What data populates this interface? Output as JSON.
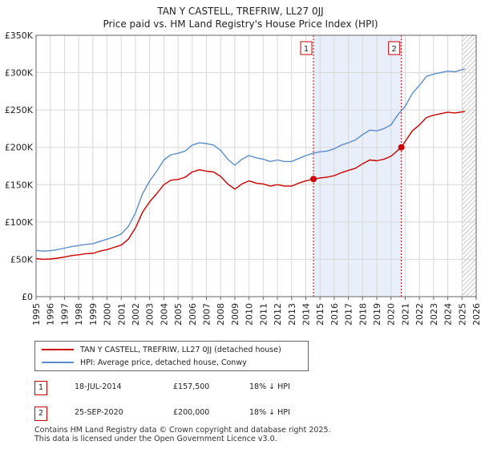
{
  "title_line1": "TAN Y CASTELL, TREFRIW, LL27 0JJ",
  "title_line2": "Price paid vs. HM Land Registry's House Price Index (HPI)",
  "chart_data": {
    "type": "line",
    "xlim": [
      1995,
      2026
    ],
    "ylim": [
      0,
      350000
    ],
    "y_ticks": [
      0,
      50000,
      100000,
      150000,
      200000,
      250000,
      300000,
      350000
    ],
    "y_tick_labels": [
      "£0",
      "£50K",
      "£100K",
      "£150K",
      "£200K",
      "£250K",
      "£300K",
      "£350K"
    ],
    "x_ticks": [
      "1995",
      "1996",
      "1997",
      "1998",
      "1999",
      "2000",
      "2001",
      "2002",
      "2003",
      "2004",
      "2005",
      "2006",
      "2007",
      "2008",
      "2009",
      "2010",
      "2011",
      "2012",
      "2013",
      "2014",
      "2015",
      "2016",
      "2017",
      "2018",
      "2019",
      "2020",
      "2021",
      "2022",
      "2023",
      "2024",
      "2025",
      "2026"
    ],
    "shaded_region": [
      2014.54,
      2020.73
    ],
    "forecast_start": 2025.0,
    "series": [
      {
        "name": "TAN Y CASTELL, TREFRIW, LL27 0JJ (detached house)",
        "color": "#cc0000",
        "x": [
          1995,
          1995.5,
          1996,
          1996.5,
          1997,
          1997.5,
          1998,
          1998.5,
          1999,
          1999.5,
          2000,
          2000.5,
          2001,
          2001.5,
          2002,
          2002.5,
          2003,
          2003.5,
          2004,
          2004.5,
          2005,
          2005.5,
          2006,
          2006.5,
          2007,
          2007.5,
          2008,
          2008.5,
          2009,
          2009.5,
          2010,
          2010.5,
          2011,
          2011.5,
          2012,
          2012.5,
          2013,
          2013.5,
          2014,
          2014.54,
          2015,
          2015.5,
          2016,
          2016.5,
          2017,
          2017.5,
          2018,
          2018.5,
          2019,
          2019.5,
          2020,
          2020.73,
          2021,
          2021.5,
          2022,
          2022.5,
          2023,
          2023.5,
          2024,
          2024.5,
          2025.2
        ],
        "values": [
          51000,
          50000,
          50500,
          51500,
          53000,
          55000,
          56000,
          57500,
          58000,
          61000,
          63000,
          66000,
          69000,
          77000,
          92000,
          113000,
          127000,
          138000,
          150000,
          156000,
          157000,
          160000,
          167000,
          170000,
          168000,
          167000,
          161000,
          151000,
          144000,
          151000,
          155000,
          152000,
          151000,
          148000,
          150000,
          148000,
          148000,
          152000,
          155000,
          157500,
          159000,
          160000,
          162000,
          166000,
          169000,
          172000,
          178000,
          183000,
          182000,
          184000,
          188000,
          200000,
          208000,
          222000,
          230000,
          240000,
          243000,
          245000,
          247000,
          246000,
          248000
        ]
      },
      {
        "name": "HPI: Average price, detached house, Conwy",
        "color": "#5b8dc8",
        "x": [
          1995,
          1995.5,
          1996,
          1996.5,
          1997,
          1997.5,
          1998,
          1998.5,
          1999,
          1999.5,
          2000,
          2000.5,
          2001,
          2001.5,
          2002,
          2002.5,
          2003,
          2003.5,
          2004,
          2004.5,
          2005,
          2005.5,
          2006,
          2006.5,
          2007,
          2007.5,
          2008,
          2008.5,
          2009,
          2009.5,
          2010,
          2010.5,
          2011,
          2011.5,
          2012,
          2012.5,
          2013,
          2013.5,
          2014,
          2014.5,
          2015,
          2015.5,
          2016,
          2016.5,
          2017,
          2017.5,
          2018,
          2018.5,
          2019,
          2019.5,
          2020,
          2020.5,
          2021,
          2021.5,
          2022,
          2022.5,
          2023,
          2023.5,
          2024,
          2024.5,
          2025.2
        ],
        "values": [
          62000,
          61000,
          61500,
          63000,
          65000,
          67000,
          68500,
          70000,
          71000,
          74000,
          77000,
          80000,
          84000,
          94000,
          112000,
          138000,
          155000,
          168000,
          183000,
          190000,
          192000,
          195000,
          203000,
          206000,
          205000,
          203000,
          196000,
          184000,
          176000,
          184000,
          189000,
          186000,
          184000,
          181000,
          183000,
          181000,
          181000,
          185000,
          189000,
          192000,
          194000,
          195000,
          198000,
          203000,
          206000,
          210000,
          217000,
          223000,
          222000,
          225000,
          230000,
          244000,
          255000,
          272000,
          283000,
          295000,
          298000,
          300000,
          302000,
          301000,
          305000
        ]
      }
    ],
    "annotations": [
      {
        "label": "1",
        "x": 2014.54,
        "y": 157500
      },
      {
        "label": "2",
        "x": 2020.73,
        "y": 200000
      }
    ]
  },
  "legend": {
    "items": [
      {
        "label": "TAN Y CASTELL, TREFRIW, LL27 0JJ (detached house)",
        "color": "#cc0000"
      },
      {
        "label": "HPI: Average price, detached house, Conwy",
        "color": "#5b8dc8"
      }
    ]
  },
  "transactions": [
    {
      "num": "1",
      "date": "18-JUL-2014",
      "price": "£157,500",
      "hpi": "18% ↓ HPI"
    },
    {
      "num": "2",
      "date": "25-SEP-2020",
      "price": "£200,000",
      "hpi": "18% ↓ HPI"
    }
  ],
  "footer_line1": "Contains HM Land Registry data © Crown copyright and database right 2025.",
  "footer_line2": "This data is licensed under the Open Government Licence v3.0."
}
